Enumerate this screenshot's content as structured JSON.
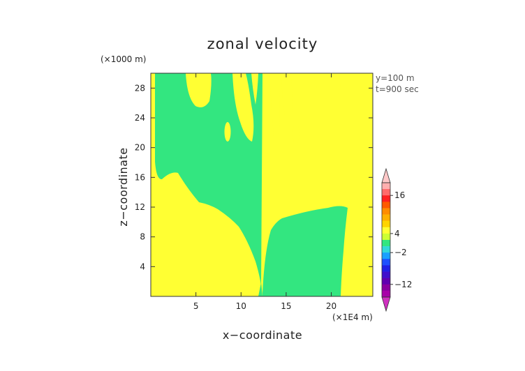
{
  "chart_data": {
    "type": "heatmap",
    "title": "zonal velocity",
    "xlabel": "x−coordinate",
    "ylabel": "z−coordinate",
    "x_unit_label": "(×1E4 m)",
    "y_unit_label": "(×1000 m)",
    "annotations": [
      "y=100  m",
      "t=900 sec"
    ],
    "xlim": [
      0,
      24.6
    ],
    "ylim": [
      0,
      30
    ],
    "x_ticks": [
      5,
      10,
      15,
      20
    ],
    "x_tick_labels": [
      "5",
      "10",
      "15",
      "20"
    ],
    "y_ticks": [
      4,
      8,
      12,
      16,
      20,
      24,
      28
    ],
    "y_tick_labels": [
      "4",
      "8",
      "12",
      "16",
      "20",
      "24",
      "28"
    ],
    "field_levels": [
      {
        "range": "4 to 10",
        "color": "#ffff33"
      },
      {
        "range": "0 to 2",
        "color": "#33e680"
      }
    ],
    "colorbar": {
      "tick_labels": [
        "16",
        "4",
        "−2",
        "−12"
      ],
      "tick_values": [
        16,
        4,
        -2,
        -12
      ],
      "min": -16,
      "max": 20,
      "colors": [
        "#ffafaf",
        "#ff6a6a",
        "#ff2020",
        "#ff5a00",
        "#ff8c00",
        "#ffb000",
        "#ffd400",
        "#ffff33",
        "#ccff33",
        "#33e680",
        "#33d9d9",
        "#1aa0ff",
        "#1e50ff",
        "#2020e6",
        "#4010cc",
        "#6000b0",
        "#8a00a0",
        "#a800a8"
      ]
    }
  }
}
